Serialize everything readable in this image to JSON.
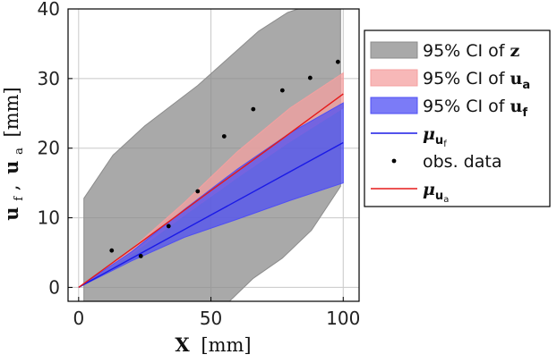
{
  "chart_data": {
    "type": "line",
    "xlabel_bold": "X",
    "xlabel_unit": "[mm]",
    "ylabel_parts": [
      "u",
      "f",
      ",",
      "u",
      "a",
      "[mm]"
    ],
    "xlim": [
      -4,
      106
    ],
    "ylim": [
      -2,
      40
    ],
    "x_ticks": [
      0,
      50,
      100
    ],
    "y_ticks": [
      0,
      10,
      20,
      30,
      40
    ],
    "grid": true,
    "legend_position": "right",
    "colors": {
      "ci_z": "#8c8c8c",
      "ci_ua": "#f4a0a0",
      "ci_uf": "#4f4ff4",
      "mean_uf": "#1a1ae6",
      "mean_ua": "#e61a1a",
      "data": "#000000"
    },
    "legend": [
      {
        "kind": "patch",
        "color": "#8c8c8c",
        "text": "95% CI of ",
        "bold": "z",
        "sub": ""
      },
      {
        "kind": "patch",
        "color": "#f4a0a0",
        "text": "95% CI of ",
        "bold": "u",
        "sub": "a"
      },
      {
        "kind": "patch",
        "color": "#4f4ff4",
        "text": "95% CI of ",
        "bold": "u",
        "sub": "f"
      },
      {
        "kind": "line",
        "color": "#1a1ae6",
        "text": "",
        "bold": "μ",
        "sub": "u",
        "subsub": "f"
      },
      {
        "kind": "dot",
        "color": "#000000",
        "text": "obs. data",
        "bold": "",
        "sub": ""
      },
      {
        "kind": "line",
        "color": "#e61a1a",
        "text": "",
        "bold": "μ",
        "sub": "u",
        "subsub": "a"
      }
    ],
    "series": [
      {
        "kind": "band",
        "color": "#8c8c8c",
        "upper": [
          [
            2,
            12.8
          ],
          [
            13,
            19
          ],
          [
            25,
            23.2
          ],
          [
            45,
            29
          ],
          [
            68,
            36.8
          ],
          [
            79,
            39.5
          ],
          [
            83,
            40
          ],
          [
            99,
            40
          ]
        ],
        "lower": [
          [
            2,
            -2
          ],
          [
            57,
            -2
          ],
          [
            66,
            1.3
          ],
          [
            77,
            4.2
          ],
          [
            88,
            8.2
          ],
          [
            99,
            14.5
          ]
        ]
      },
      {
        "kind": "band",
        "color": "#f4a0a0",
        "upper": [
          [
            0,
            0
          ],
          [
            20,
            5.5
          ],
          [
            40,
            12.2
          ],
          [
            60,
            19.5
          ],
          [
            80,
            25.8
          ],
          [
            100,
            30.8
          ]
        ],
        "lower": [
          [
            0,
            0
          ],
          [
            20,
            4.8
          ],
          [
            40,
            10.4
          ],
          [
            60,
            15.8
          ],
          [
            80,
            21
          ],
          [
            100,
            25.8
          ]
        ]
      },
      {
        "kind": "band",
        "color": "#4f4ff4",
        "upper": [
          [
            0,
            0
          ],
          [
            20,
            5.1
          ],
          [
            40,
            11.2
          ],
          [
            60,
            17
          ],
          [
            80,
            22.2
          ],
          [
            100,
            26.5
          ]
        ],
        "lower": [
          [
            0,
            0
          ],
          [
            20,
            3.8
          ],
          [
            40,
            7.2
          ],
          [
            60,
            9.8
          ],
          [
            80,
            12.5
          ],
          [
            100,
            15
          ]
        ]
      },
      {
        "kind": "line",
        "color": "#1a1ae6",
        "points": [
          [
            0,
            0
          ],
          [
            25,
            5.2
          ],
          [
            50,
            10.4
          ],
          [
            75,
            15.6
          ],
          [
            100,
            20.8
          ]
        ]
      },
      {
        "kind": "line",
        "color": "#e61a1a",
        "points": [
          [
            0,
            0
          ],
          [
            25,
            6.9
          ],
          [
            50,
            13.9
          ],
          [
            75,
            20.8
          ],
          [
            100,
            27.8
          ]
        ]
      },
      {
        "kind": "scatter",
        "color": "#000000",
        "points": [
          [
            12.5,
            5.3
          ],
          [
            23.5,
            4.5
          ],
          [
            34,
            8.8
          ],
          [
            45,
            13.8
          ],
          [
            55,
            21.7
          ],
          [
            66,
            25.6
          ],
          [
            77,
            28.3
          ],
          [
            87.5,
            30.1
          ],
          [
            98,
            32.4
          ]
        ]
      }
    ]
  }
}
